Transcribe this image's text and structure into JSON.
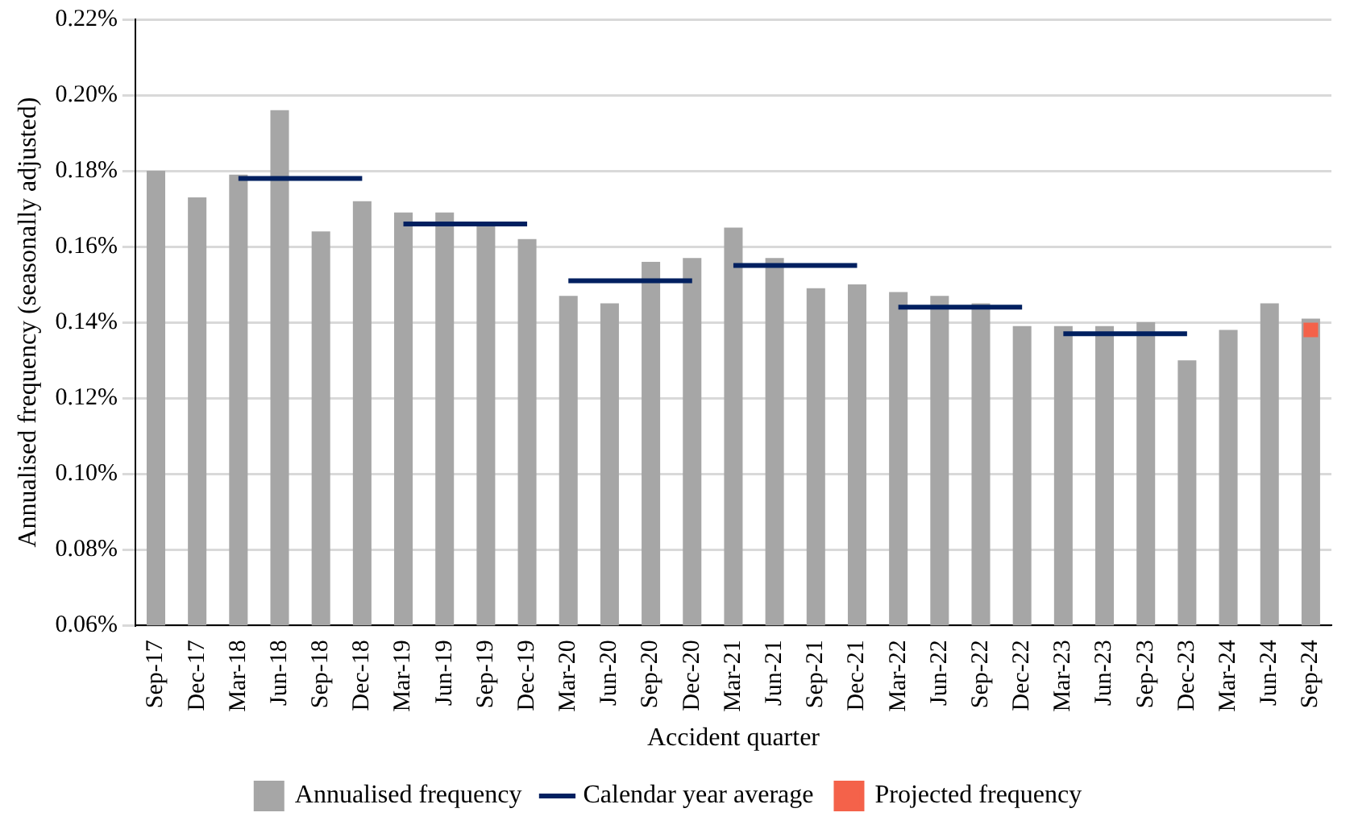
{
  "chart_data": {
    "type": "bar",
    "xlabel": "Accident quarter",
    "ylabel": "Annualised frequency (seasonally adjusted)",
    "categories": [
      "Sep-17",
      "Dec-17",
      "Mar-18",
      "Jun-18",
      "Sep-18",
      "Dec-18",
      "Mar-19",
      "Jun-19",
      "Sep-19",
      "Dec-19",
      "Mar-20",
      "Jun-20",
      "Sep-20",
      "Dec-20",
      "Mar-21",
      "Jun-21",
      "Sep-21",
      "Dec-21",
      "Mar-22",
      "Jun-22",
      "Sep-22",
      "Dec-22",
      "Mar-23",
      "Jun-23",
      "Sep-23",
      "Dec-23",
      "Mar-24",
      "Jun-24",
      "Sep-24"
    ],
    "series": [
      {
        "name": "Annualised frequency",
        "color": "#a6a6a6",
        "values": [
          0.18,
          0.173,
          0.179,
          0.196,
          0.164,
          0.172,
          0.169,
          0.169,
          0.166,
          0.162,
          0.147,
          0.145,
          0.156,
          0.157,
          0.165,
          0.157,
          0.149,
          0.15,
          0.148,
          0.147,
          0.145,
          0.139,
          0.139,
          0.139,
          0.14,
          0.13,
          0.138,
          0.145,
          0.141
        ]
      },
      {
        "name": "Calendar year average",
        "type": "line",
        "color": "#002060",
        "values": [
          null,
          null,
          0.178,
          0.178,
          0.178,
          0.178,
          0.166,
          0.166,
          0.166,
          0.166,
          0.151,
          0.151,
          0.151,
          0.151,
          0.155,
          0.155,
          0.155,
          0.155,
          0.144,
          0.144,
          0.144,
          0.144,
          0.137,
          0.137,
          0.137,
          0.137,
          null,
          null,
          null
        ]
      },
      {
        "name": "Projected frequency",
        "type": "scatter",
        "marker": "square",
        "color": "#f4624a",
        "values": [
          null,
          null,
          null,
          null,
          null,
          null,
          null,
          null,
          null,
          null,
          null,
          null,
          null,
          null,
          null,
          null,
          null,
          null,
          null,
          null,
          null,
          null,
          null,
          null,
          null,
          null,
          null,
          null,
          0.138
        ]
      }
    ],
    "ylim": [
      0.06,
      0.22
    ],
    "yticks": [
      {
        "value": 0.06,
        "label": "0.06%"
      },
      {
        "value": 0.08,
        "label": "0.08%"
      },
      {
        "value": 0.1,
        "label": "0.10%"
      },
      {
        "value": 0.12,
        "label": "0.12%"
      },
      {
        "value": 0.14,
        "label": "0.14%"
      },
      {
        "value": 0.16,
        "label": "0.16%"
      },
      {
        "value": 0.18,
        "label": "0.18%"
      },
      {
        "value": 0.2,
        "label": "0.20%"
      },
      {
        "value": 0.22,
        "label": "0.22%"
      }
    ],
    "grid": "y",
    "legend": "bottom"
  }
}
